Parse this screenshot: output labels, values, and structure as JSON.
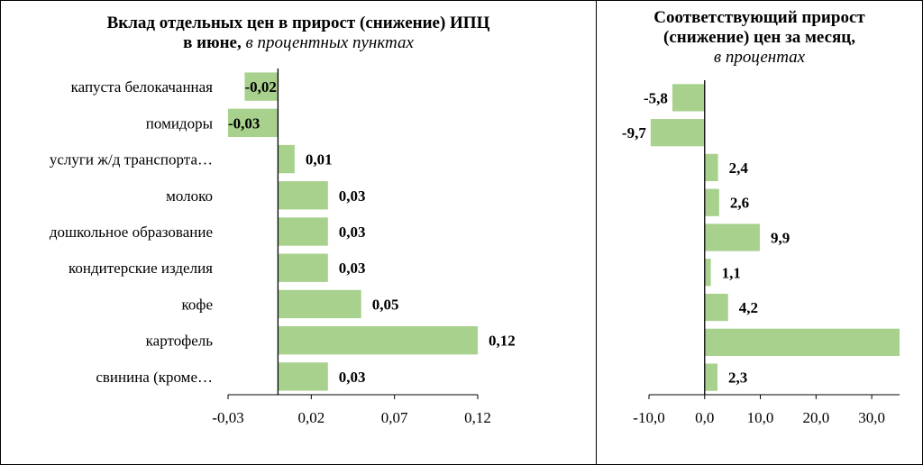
{
  "chart_data": [
    {
      "type": "bar",
      "orientation": "horizontal",
      "title": "Вклад отдельных цен в прирост (снижение) ИПЦ",
      "title_line2": "в июне,",
      "subtitle": "в процентных пунктах",
      "categories": [
        "капуста белокачанная",
        "помидоры",
        "услуги   ж/д  транспорта…",
        "молоко",
        "дошкольное образование",
        "кондитерские изделия",
        "кофе",
        "картофель",
        "свинина (кроме…"
      ],
      "values": [
        -0.02,
        -0.03,
        0.01,
        0.03,
        0.03,
        0.03,
        0.05,
        0.12,
        0.03
      ],
      "data_labels": [
        "-0,02",
        "-0,03",
        "0,01",
        "0,03",
        "0,03",
        "0,03",
        "0,05",
        "0,12",
        "0,03"
      ],
      "xlim": [
        -0.03,
        0.12
      ],
      "xticks": [
        -0.03,
        0.02,
        0.07,
        0.12
      ],
      "xtick_labels": [
        "-0,03",
        "0,02",
        "0,07",
        "0,12"
      ],
      "bar_color": "#a9d18e",
      "grid": false,
      "legend": "none"
    },
    {
      "type": "bar",
      "orientation": "horizontal",
      "title": "Соответствующий прирост",
      "title_line2": "(снижение) цен за месяц,",
      "subtitle": "в процентах",
      "values": [
        -5.8,
        -9.7,
        2.4,
        2.6,
        9.9,
        1.1,
        4.2,
        35.0,
        2.3
      ],
      "data_labels": [
        "-5,8",
        "-9,7",
        "2,4",
        "2,6",
        "9,9",
        "1,1",
        "4,2",
        "",
        "2,3"
      ],
      "xlim": [
        -10,
        35
      ],
      "xticks": [
        -10,
        0,
        10,
        20,
        30
      ],
      "xtick_labels": [
        "-10,0",
        "0,0",
        "10,0",
        "20,0",
        "30,0"
      ],
      "bar_color": "#a9d18e",
      "grid": false,
      "legend": "none"
    }
  ]
}
